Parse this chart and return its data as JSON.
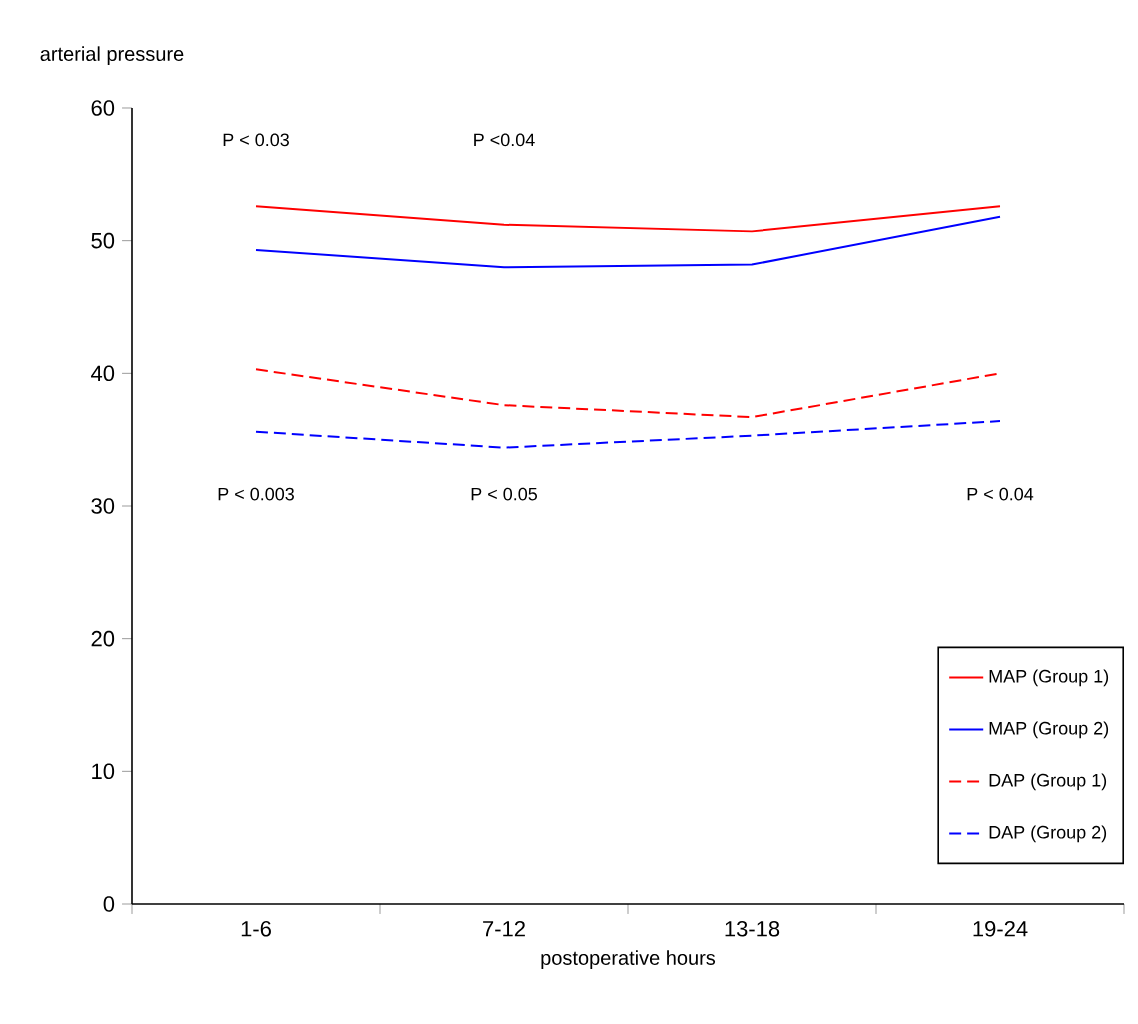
{
  "chart_data": {
    "type": "line",
    "xlabel": "postoperative hours",
    "ylabel": "arterial pressure",
    "categories": [
      "1-6",
      "7-12",
      "13-18",
      "19-24"
    ],
    "series": [
      {
        "name": "MAP (Group 1)",
        "color": "#ff0000",
        "line_style": "solid",
        "values": [
          52.6,
          51.2,
          50.7,
          52.6
        ]
      },
      {
        "name": "MAP (Group 2)",
        "color": "#0000ff",
        "line_style": "solid",
        "values": [
          49.3,
          48.0,
          48.2,
          51.8
        ]
      },
      {
        "name": "DAP (Group 1)",
        "color": "#ff0000",
        "line_style": "dashed",
        "values": [
          40.3,
          37.6,
          36.7,
          40.0
        ]
      },
      {
        "name": "DAP (Group 2)",
        "color": "#0000ff",
        "line_style": "dashed",
        "values": [
          35.6,
          34.4,
          35.3,
          36.4
        ]
      }
    ],
    "ylim": [
      0,
      60
    ],
    "yticks": [
      0,
      10,
      20,
      30,
      40,
      50,
      60
    ],
    "grid": false,
    "legend": "bottom right",
    "marker": "none",
    "annotations": [
      "P < 0.03",
      "P <0.04",
      "P < 0.003",
      "P < 0.05",
      "P < 0.04"
    ]
  }
}
